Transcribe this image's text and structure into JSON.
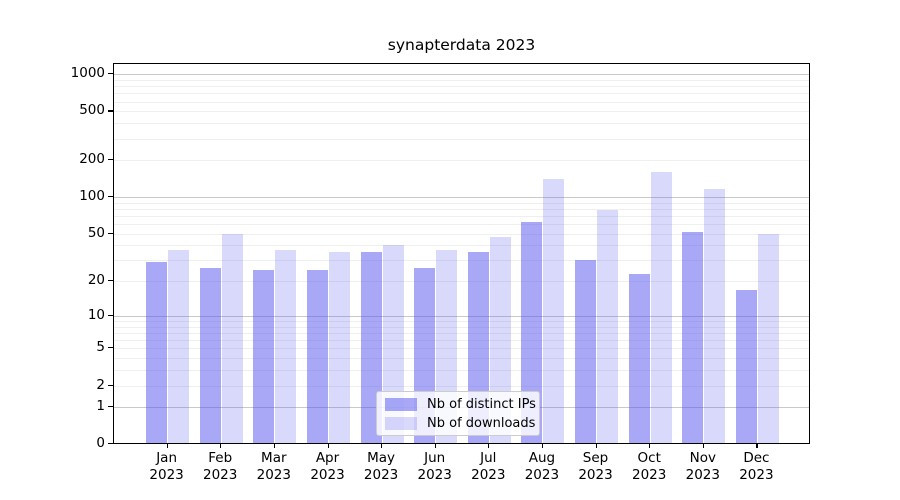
{
  "title": "synapterdata 2023",
  "chart_data": {
    "type": "bar",
    "title": "synapterdata 2023",
    "categories": [
      "Jan",
      "Feb",
      "Mar",
      "Apr",
      "May",
      "Jun",
      "Jul",
      "Aug",
      "Sep",
      "Oct",
      "Nov",
      "Dec"
    ],
    "x_tick_year": "2023",
    "series": [
      {
        "name": "Nb of distinct IPs",
        "fill": "rgba(82,82,240,0.50)",
        "color_over_white": "#a7a7f7",
        "values": [
          29,
          26,
          25,
          25,
          35,
          26,
          35,
          63,
          30,
          23,
          52,
          17
        ]
      },
      {
        "name": "Nb of downloads",
        "fill": "rgba(82,82,240,0.22)",
        "color_over_white": "#d9d9fb",
        "values": [
          37,
          50,
          37,
          35,
          40,
          37,
          47,
          140,
          79,
          161,
          117,
          50
        ]
      }
    ],
    "yscale": "log1p",
    "ylim": [
      0,
      1200
    ],
    "y_tick_labels": [
      "1000",
      "500",
      "200",
      "100",
      "50",
      "20",
      "10",
      "5",
      "2",
      "1",
      "0"
    ],
    "y_tick_values": [
      1000,
      500,
      200,
      100,
      50,
      20,
      10,
      5,
      2,
      1,
      0
    ],
    "grid": true,
    "legend_position": "bottom-center"
  },
  "colors": {
    "major_gridline": "#c9c9c9",
    "minor_gridline": "#efefef",
    "axis": "#000000",
    "legend_border": "#cccccc"
  }
}
